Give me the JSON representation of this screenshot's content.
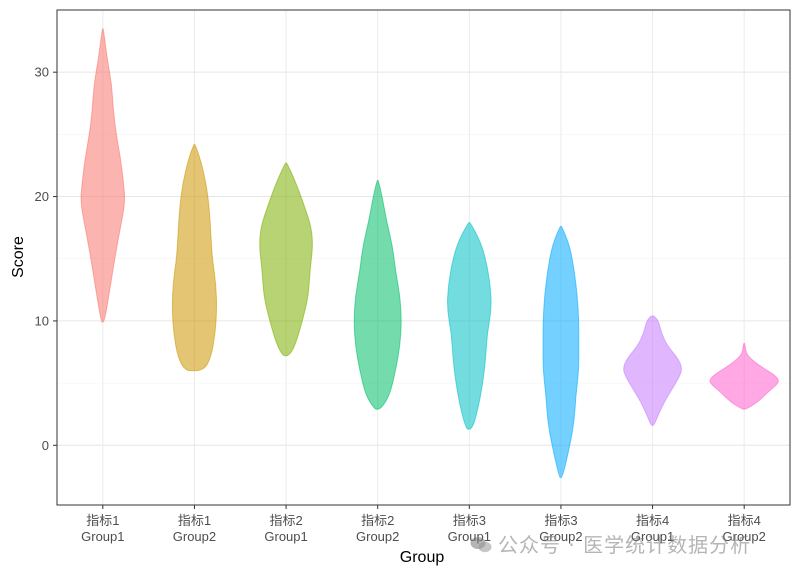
{
  "chart_data": {
    "type": "violin",
    "xlabel": "Group",
    "ylabel": "Score",
    "ylim": [
      -4.8,
      35
    ],
    "y_ticks": [
      0,
      10,
      20,
      30
    ],
    "grid": true,
    "categories": [
      {
        "line1": "指标1",
        "line2": "Group1",
        "color": "#F8766D"
      },
      {
        "line1": "指标1",
        "line2": "Group2",
        "color": "#CD9600"
      },
      {
        "line1": "指标2",
        "line2": "Group1",
        "color": "#7CAE00"
      },
      {
        "line1": "指标2",
        "line2": "Group2",
        "color": "#00BE67"
      },
      {
        "line1": "指标3",
        "line2": "Group1",
        "color": "#00BFC4"
      },
      {
        "line1": "指标3",
        "line2": "Group2",
        "color": "#00A9FF"
      },
      {
        "line1": "指标4",
        "line2": "Group1",
        "color": "#C77CFF"
      },
      {
        "line1": "指标4",
        "line2": "Group2",
        "color": "#FF61CC"
      }
    ],
    "violins": [
      {
        "min": 9.9,
        "max": 33.5,
        "profile": [
          [
            9.9,
            0.05
          ],
          [
            12,
            0.2
          ],
          [
            15,
            0.4
          ],
          [
            17,
            0.55
          ],
          [
            19.5,
            0.75
          ],
          [
            21,
            0.7
          ],
          [
            23,
            0.6
          ],
          [
            25,
            0.45
          ],
          [
            27,
            0.35
          ],
          [
            29,
            0.3
          ],
          [
            31,
            0.15
          ],
          [
            33.5,
            0.02
          ]
        ]
      },
      {
        "min": 6.0,
        "max": 24.2,
        "profile": [
          [
            6,
            0.3
          ],
          [
            7,
            0.55
          ],
          [
            9,
            0.7
          ],
          [
            11,
            0.75
          ],
          [
            13,
            0.72
          ],
          [
            15,
            0.6
          ],
          [
            17,
            0.55
          ],
          [
            19,
            0.5
          ],
          [
            21,
            0.4
          ],
          [
            23,
            0.2
          ],
          [
            24.2,
            0.02
          ]
        ]
      },
      {
        "min": 7.2,
        "max": 22.7,
        "profile": [
          [
            7.2,
            0.1
          ],
          [
            8,
            0.3
          ],
          [
            10,
            0.55
          ],
          [
            12,
            0.75
          ],
          [
            14,
            0.8
          ],
          [
            16,
            0.9
          ],
          [
            17.5,
            0.85
          ],
          [
            19,
            0.65
          ],
          [
            21,
            0.35
          ],
          [
            22.7,
            0.03
          ]
        ]
      },
      {
        "min": 2.9,
        "max": 21.3,
        "profile": [
          [
            2.9,
            0.1
          ],
          [
            4,
            0.4
          ],
          [
            6,
            0.6
          ],
          [
            8,
            0.75
          ],
          [
            10,
            0.8
          ],
          [
            12,
            0.75
          ],
          [
            14,
            0.6
          ],
          [
            16,
            0.5
          ],
          [
            18,
            0.3
          ],
          [
            20,
            0.15
          ],
          [
            21.3,
            0.02
          ]
        ]
      },
      {
        "min": 1.3,
        "max": 17.9,
        "profile": [
          [
            1.3,
            0.1
          ],
          [
            3,
            0.3
          ],
          [
            5,
            0.45
          ],
          [
            7,
            0.55
          ],
          [
            9,
            0.6
          ],
          [
            11,
            0.75
          ],
          [
            13,
            0.7
          ],
          [
            15,
            0.55
          ],
          [
            16.5,
            0.35
          ],
          [
            17.9,
            0.03
          ]
        ]
      },
      {
        "min": -2.6,
        "max": 17.6,
        "profile": [
          [
            -2.6,
            0.05
          ],
          [
            0,
            0.3
          ],
          [
            2,
            0.45
          ],
          [
            4,
            0.5
          ],
          [
            6,
            0.6
          ],
          [
            8,
            0.6
          ],
          [
            10,
            0.6
          ],
          [
            12,
            0.55
          ],
          [
            14,
            0.45
          ],
          [
            16,
            0.3
          ],
          [
            17.6,
            0.03
          ]
        ]
      },
      {
        "min": 1.6,
        "max": 10.4,
        "profile": [
          [
            1.6,
            0.05
          ],
          [
            2.5,
            0.2
          ],
          [
            3.5,
            0.4
          ],
          [
            4.5,
            0.65
          ],
          [
            5.5,
            0.9
          ],
          [
            6.2,
            1.0
          ],
          [
            7,
            0.85
          ],
          [
            8,
            0.5
          ],
          [
            9,
            0.3
          ],
          [
            10,
            0.2
          ],
          [
            10.4,
            0.05
          ]
        ]
      },
      {
        "min": 2.9,
        "max": 8.2,
        "profile": [
          [
            2.9,
            0.05
          ],
          [
            3.3,
            0.35
          ],
          [
            3.8,
            0.6
          ],
          [
            4.4,
            0.85
          ],
          [
            5.1,
            1.2
          ],
          [
            5.6,
            1.05
          ],
          [
            6.2,
            0.65
          ],
          [
            6.7,
            0.35
          ],
          [
            7.2,
            0.12
          ],
          [
            7.6,
            0.05
          ],
          [
            8.2,
            0.02
          ]
        ]
      }
    ]
  },
  "watermark": {
    "text": "公众号 · 医学统计数据分析"
  }
}
